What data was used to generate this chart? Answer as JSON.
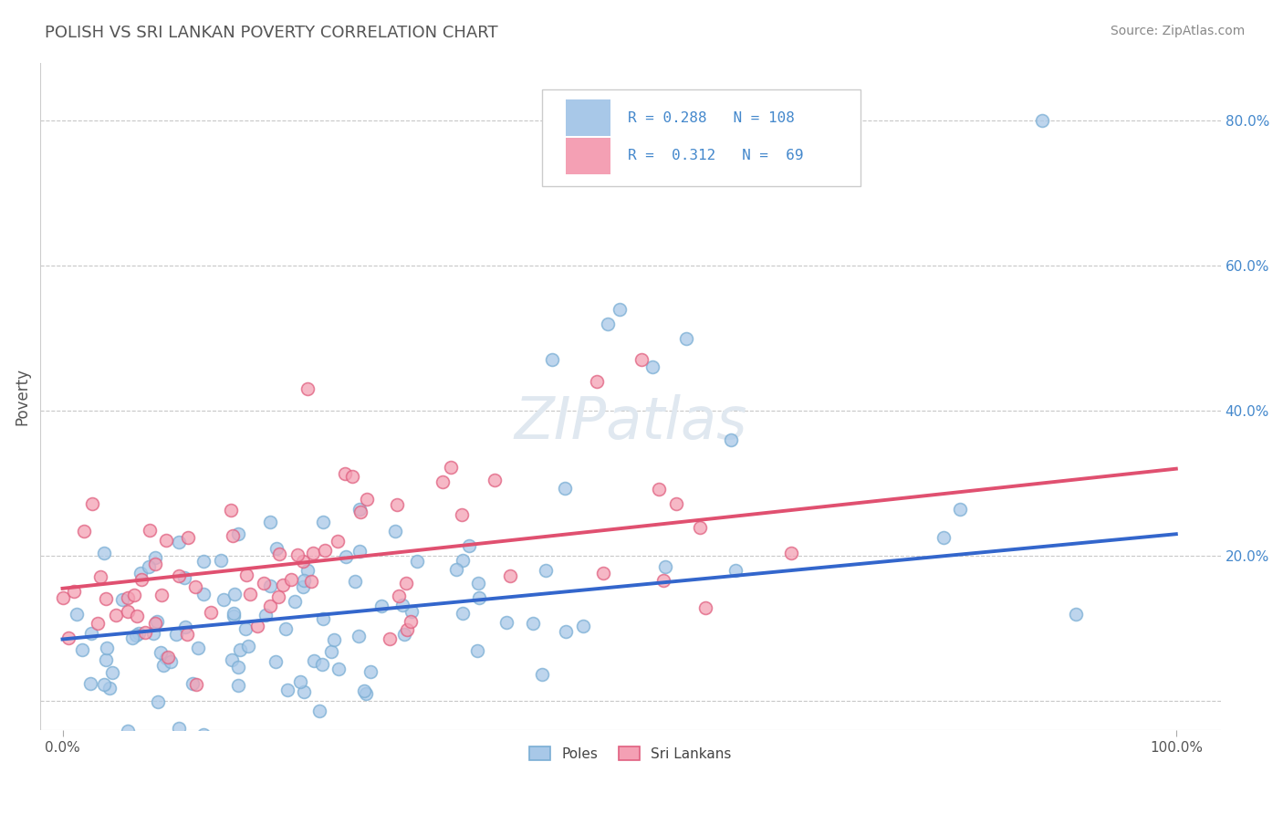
{
  "title": "POLISH VS SRI LANKAN POVERTY CORRELATION CHART",
  "source": "Source: ZipAtlas.com",
  "xlabel": "",
  "ylabel": "Poverty",
  "xlim": [
    0.0,
    1.0
  ],
  "ylim": [
    -0.04,
    0.88
  ],
  "poles_color": "#a8c8e8",
  "poles_edge_color": "#7aaed4",
  "srilankans_color": "#f4a0b4",
  "srilankans_edge_color": "#e06080",
  "poles_line_color": "#3366cc",
  "srilankans_line_color": "#e05070",
  "tick_color": "#4488cc",
  "ylabel_color": "#555555",
  "poles_R": 0.288,
  "poles_N": 108,
  "srilankans_R": 0.312,
  "srilankans_N": 69,
  "watermark": "ZIPatlas",
  "background_color": "#ffffff",
  "title_color": "#555555",
  "poles_line_intercept": 0.085,
  "poles_line_slope": 0.145,
  "srilankans_line_intercept": 0.155,
  "srilankans_line_slope": 0.165
}
